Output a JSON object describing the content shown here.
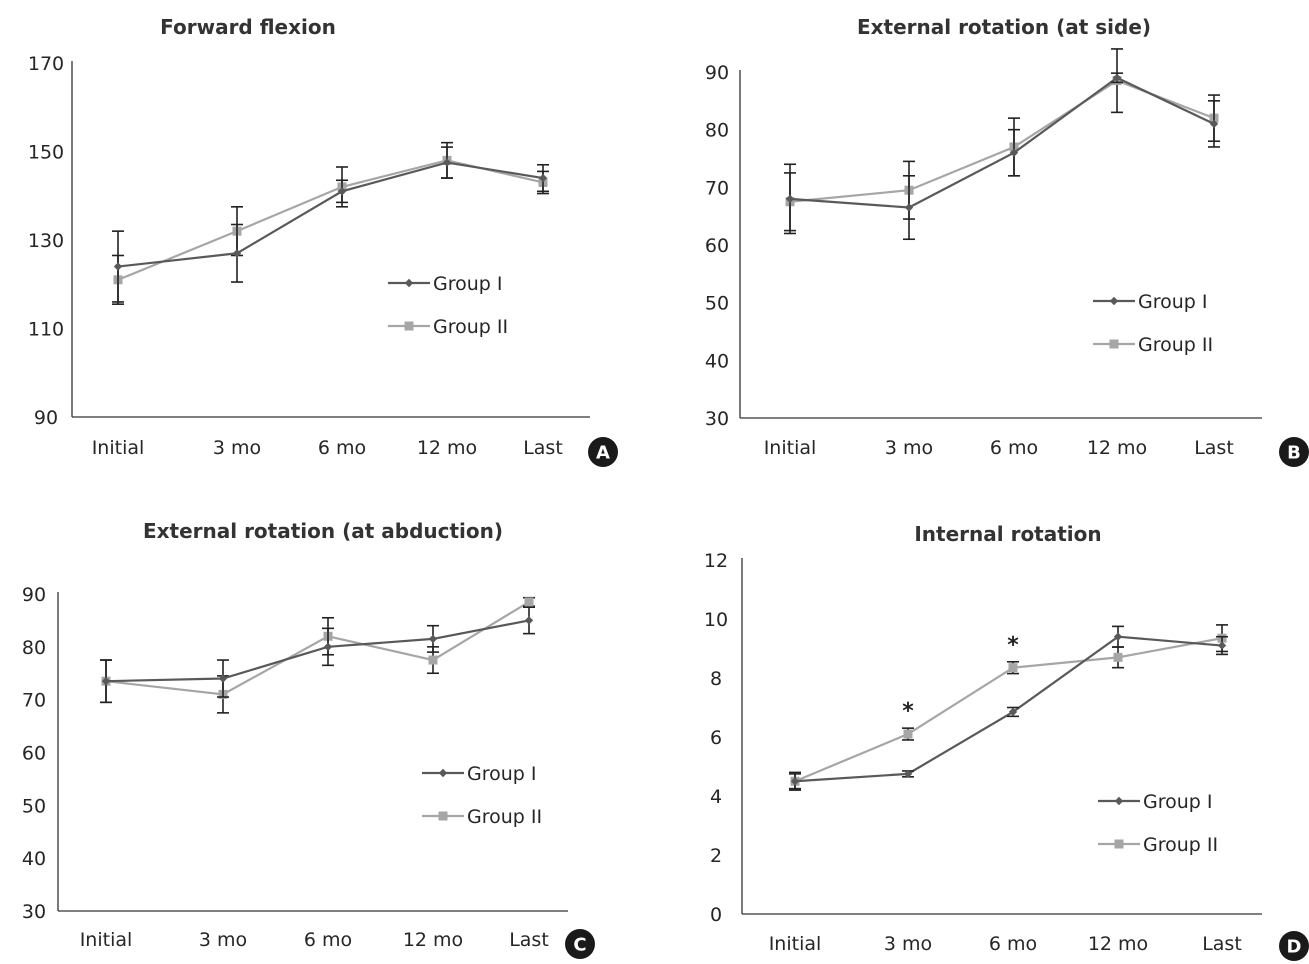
{
  "colors": {
    "group_1": "#595959",
    "group_2": "#a6a6a6",
    "axis": "#333333",
    "badge": "#1a1a1a"
  },
  "chart_data": [
    {
      "panel": "A",
      "type": "line",
      "title": "Forward flexion",
      "categories": [
        "Initial",
        "3 mo",
        "6 mo",
        "12 mo",
        "Last"
      ],
      "ylim": [
        90,
        170
      ],
      "yticks": [
        "90",
        "110",
        "130",
        "150",
        "170"
      ],
      "legend_position": "right-middle",
      "series": [
        {
          "name": "Group I",
          "marker": "diamond",
          "values": [
            124,
            127,
            141,
            147.5,
            144
          ],
          "error": [
            8,
            6.5,
            2.5,
            3.5,
            3
          ]
        },
        {
          "name": "Group II",
          "marker": "square",
          "values": [
            121,
            132,
            142,
            148,
            143
          ],
          "error": [
            5.5,
            5.5,
            4.5,
            4,
            2.5
          ]
        }
      ],
      "annotations": []
    },
    {
      "panel": "B",
      "type": "line",
      "title": "External rotation (at side)",
      "categories": [
        "Initial",
        "3 mo",
        "6 mo",
        "12 mo",
        "Last"
      ],
      "ylim": [
        30,
        90
      ],
      "yticks": [
        "30",
        "40",
        "50",
        "60",
        "70",
        "80",
        "90"
      ],
      "legend_position": "right-lower",
      "series": [
        {
          "name": "Group I",
          "marker": "diamond",
          "values": [
            68,
            66.5,
            76,
            89,
            81
          ],
          "error": [
            6,
            5.5,
            4,
            0.8,
            4
          ]
        },
        {
          "name": "Group II",
          "marker": "square",
          "values": [
            67.5,
            69.5,
            77,
            88.5,
            82
          ],
          "error": [
            5,
            5,
            5,
            5.5,
            4
          ]
        }
      ],
      "annotations": []
    },
    {
      "panel": "C",
      "type": "line",
      "title": "External rotation (at abduction)",
      "categories": [
        "Initial",
        "3 mo",
        "6 mo",
        "12 mo",
        "Last"
      ],
      "ylim": [
        30,
        90
      ],
      "yticks": [
        "30",
        "40",
        "50",
        "60",
        "70",
        "80",
        "90"
      ],
      "legend_position": "right-lower",
      "series": [
        {
          "name": "Group I",
          "marker": "diamond",
          "values": [
            73.5,
            74,
            80,
            81.5,
            85
          ],
          "error": [
            4,
            3.5,
            3.5,
            2.5,
            2.5
          ]
        },
        {
          "name": "Group II",
          "marker": "square",
          "values": [
            73.5,
            71,
            82,
            77.5,
            88.5
          ],
          "error": [
            4,
            3.5,
            3.5,
            2.5,
            0.8
          ]
        }
      ],
      "annotations": []
    },
    {
      "panel": "D",
      "type": "line",
      "title": "Internal rotation",
      "categories": [
        "Initial",
        "3 mo",
        "6 mo",
        "12 mo",
        "Last"
      ],
      "ylim": [
        0,
        12
      ],
      "yticks": [
        "0",
        "2",
        "4",
        "6",
        "8",
        "10",
        "12"
      ],
      "legend_position": "right-lower",
      "series": [
        {
          "name": "Group I",
          "marker": "diamond",
          "values": [
            4.5,
            4.75,
            6.85,
            9.4,
            9.1
          ],
          "error": [
            0.3,
            0.1,
            0.15,
            0.35,
            0.3
          ]
        },
        {
          "name": "Group II",
          "marker": "square",
          "values": [
            4.5,
            6.1,
            8.35,
            8.7,
            9.35
          ],
          "error": [
            0.25,
            0.2,
            0.2,
            0.35,
            0.45
          ]
        }
      ],
      "annotations": [
        {
          "text": "*",
          "category_index": 1
        },
        {
          "text": "*",
          "category_index": 2
        }
      ]
    }
  ]
}
